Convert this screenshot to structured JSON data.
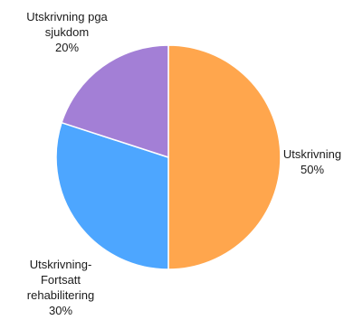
{
  "chart_data": {
    "type": "pie",
    "title": "",
    "slices": [
      {
        "label_lines": [
          "Utskrivning"
        ],
        "percent_label": "50%",
        "value": 50,
        "color": "#FFA64D"
      },
      {
        "label_lines": [
          "Utskrivning-",
          "Fortsatt",
          "rehabilitering"
        ],
        "percent_label": "30%",
        "value": 30,
        "color": "#4DA6FF"
      },
      {
        "label_lines": [
          "Utskrivning pga",
          "sjukdom"
        ],
        "percent_label": "20%",
        "value": 20,
        "color": "#A37FD6"
      }
    ],
    "start_angle_deg": 0,
    "direction": "clockwise",
    "legend": "none"
  }
}
